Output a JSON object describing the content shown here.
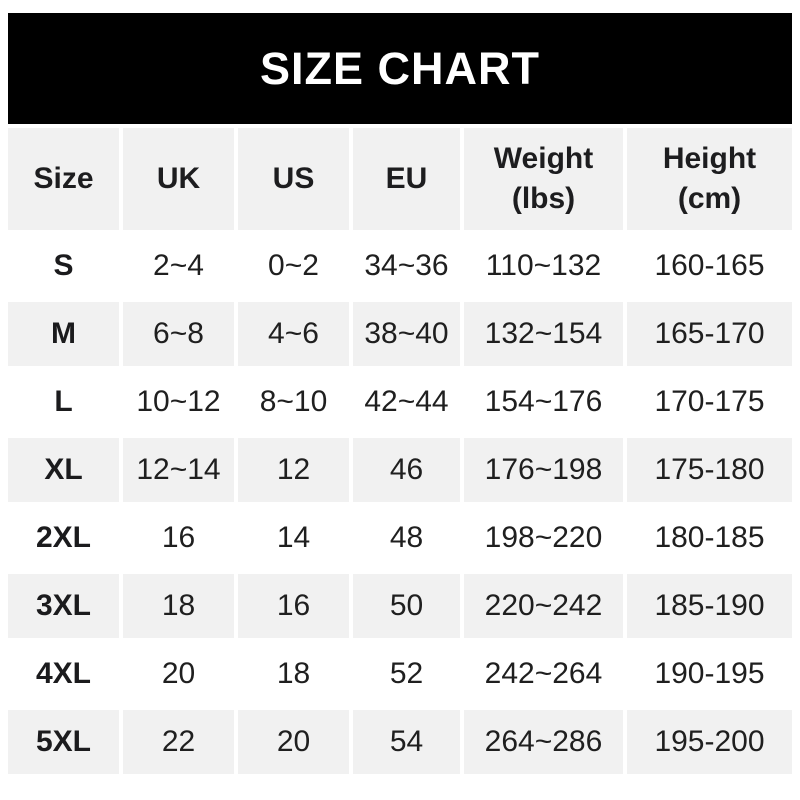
{
  "banner": {
    "title": "SIZE CHART",
    "background": "#000000",
    "text_color": "#ffffff"
  },
  "chart_data": {
    "type": "table",
    "title": "SIZE CHART",
    "columns": [
      "Size",
      "UK",
      "US",
      "EU",
      "Weight (lbs)",
      "Height (cm)"
    ],
    "header_lines": [
      {
        "main": "Size",
        "sub": ""
      },
      {
        "main": "UK",
        "sub": ""
      },
      {
        "main": "US",
        "sub": ""
      },
      {
        "main": "EU",
        "sub": ""
      },
      {
        "main": "Weight",
        "sub": "(lbs)"
      },
      {
        "main": "Height",
        "sub": "(cm)"
      }
    ],
    "rows": [
      [
        "S",
        "2~4",
        "0~2",
        "34~36",
        "110~132",
        "160-165"
      ],
      [
        "M",
        "6~8",
        "4~6",
        "38~40",
        "132~154",
        "165-170"
      ],
      [
        "L",
        "10~12",
        "8~10",
        "42~44",
        "154~176",
        "170-175"
      ],
      [
        "XL",
        "12~14",
        "12",
        "46",
        "176~198",
        "175-180"
      ],
      [
        "2XL",
        "16",
        "14",
        "48",
        "198~220",
        "180-185"
      ],
      [
        "3XL",
        "18",
        "16",
        "50",
        "220~242",
        "185-190"
      ],
      [
        "4XL",
        "20",
        "18",
        "52",
        "242~264",
        "190-195"
      ],
      [
        "5XL",
        "22",
        "20",
        "54",
        "264~286",
        "195-200"
      ]
    ],
    "layout": {
      "striped": true,
      "row_background": "#ffffff",
      "alt_row_background": "#f1f1f1",
      "header_background": "#f1f1f1",
      "cell_gutter_color": "#ffffff",
      "text_color": "#1f1f1f"
    }
  }
}
